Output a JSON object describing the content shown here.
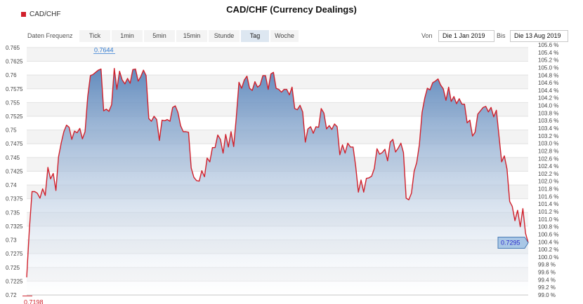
{
  "chart_data": {
    "type": "area",
    "title": "CAD/CHF (Currency Dealings)",
    "legend": [
      "CAD/CHF"
    ],
    "ylim": [
      0.72,
      0.7655
    ],
    "right_ylim": [
      99.0,
      105.6
    ],
    "left_ticks": [
      "0.765",
      "0.7625",
      "0.76",
      "0.7575",
      "0.755",
      "0.7525",
      "0.75",
      "0.7475",
      "0.745",
      "0.7425",
      "0.74",
      "0.7375",
      "0.735",
      "0.7325",
      "0.73",
      "0.7275",
      "0.725",
      "0.7225",
      "0.72"
    ],
    "right_ticks": [
      "105.6 %",
      "105.4 %",
      "105.2 %",
      "105.0 %",
      "104.8 %",
      "104.6 %",
      "104.4 %",
      "104.2 %",
      "104.0 %",
      "103.8 %",
      "103.6 %",
      "103.4 %",
      "103.2 %",
      "103.0 %",
      "102.8 %",
      "102.6 %",
      "102.4 %",
      "102.2 %",
      "102.0 %",
      "101.8 %",
      "101.6 %",
      "101.4 %",
      "101.2 %",
      "101.0 %",
      "100.8 %",
      "100.6 %",
      "100.4 %",
      "100.2 %",
      "100.0 %",
      "99.8 %",
      "99.6 %",
      "99.4 %",
      "99.2 %",
      "99.0 %"
    ],
    "x_start": "2019-01-01",
    "x_end": "2019-08-13",
    "max_label": "0.7644",
    "min_label": "0.7198",
    "last_label": "0.7295",
    "series": [
      {
        "values": [
          0.7232,
          0.7319,
          0.7388,
          0.7388,
          0.7385,
          0.7376,
          0.7393,
          0.7381,
          0.7432,
          0.7411,
          0.7421,
          0.739,
          0.7451,
          0.7476,
          0.7497,
          0.7509,
          0.7505,
          0.7483,
          0.7498,
          0.7495,
          0.7503,
          0.7484,
          0.7497,
          0.7561,
          0.7599,
          0.7601,
          0.7605,
          0.7609,
          0.7611,
          0.7535,
          0.7538,
          0.7534,
          0.7546,
          0.7612,
          0.7574,
          0.7607,
          0.7591,
          0.7584,
          0.7594,
          0.7585,
          0.761,
          0.7611,
          0.7589,
          0.7597,
          0.7609,
          0.7599,
          0.7521,
          0.7516,
          0.7525,
          0.7519,
          0.7481,
          0.7518,
          0.7517,
          0.7519,
          0.7516,
          0.7541,
          0.7544,
          0.7532,
          0.7508,
          0.7497,
          0.7497,
          0.7496,
          0.7431,
          0.7414,
          0.7408,
          0.7407,
          0.7426,
          0.7415,
          0.7449,
          0.7442,
          0.7468,
          0.7468,
          0.7491,
          0.7483,
          0.7458,
          0.7492,
          0.7469,
          0.7497,
          0.747,
          0.7523,
          0.7587,
          0.7576,
          0.7591,
          0.7598,
          0.7576,
          0.7572,
          0.7588,
          0.7578,
          0.7582,
          0.7599,
          0.7599,
          0.7574,
          0.7602,
          0.7605,
          0.7576,
          0.7574,
          0.7569,
          0.7574,
          0.7574,
          0.7564,
          0.7578,
          0.7539,
          0.7537,
          0.7545,
          0.7533,
          0.7478,
          0.7502,
          0.7506,
          0.7494,
          0.7506,
          0.7505,
          0.7539,
          0.7531,
          0.7502,
          0.7508,
          0.7501,
          0.7511,
          0.7506,
          0.7455,
          0.7473,
          0.7458,
          0.7476,
          0.7469,
          0.7469,
          0.7434,
          0.7387,
          0.7409,
          0.7387,
          0.7412,
          0.7413,
          0.7416,
          0.743,
          0.7466,
          0.7456,
          0.7459,
          0.7465,
          0.7444,
          0.7478,
          0.7483,
          0.746,
          0.7467,
          0.7476,
          0.7459,
          0.7376,
          0.7373,
          0.7385,
          0.7425,
          0.7441,
          0.7474,
          0.7532,
          0.7558,
          0.7576,
          0.7573,
          0.7586,
          0.7589,
          0.7593,
          0.7582,
          0.7575,
          0.7554,
          0.7578,
          0.7552,
          0.7561,
          0.7548,
          0.7557,
          0.7547,
          0.7547,
          0.7513,
          0.7518,
          0.7489,
          0.7496,
          0.7529,
          0.7535,
          0.7541,
          0.7543,
          0.7533,
          0.7541,
          0.7524,
          0.7536,
          0.7489,
          0.7442,
          0.7453,
          0.7429,
          0.737,
          0.7361,
          0.7335,
          0.7354,
          0.7324,
          0.7357,
          0.7312,
          0.7295
        ]
      }
    ]
  },
  "legend_label": "CAD/CHF",
  "controls": {
    "frequency_label": "Daten Frequenz",
    "tabs": [
      "Tick",
      "1min",
      "5min",
      "15min",
      "Stunde",
      "Tag",
      "Woche"
    ],
    "active_tab": "Tag",
    "from_label": "Von",
    "from_value": "Die 1 Jan 2019",
    "to_label": "Bis",
    "to_value": "Die 13 Aug 2019"
  },
  "colors": {
    "line": "#d1202b",
    "fill_top": "#5a85ba",
    "fill_bottom": "#ffffff",
    "grid": "#e2e2e2",
    "band": "#f3f3f3",
    "max_label": "#2e7ad1",
    "min_label": "#d1202b",
    "last_box_fill": "#a9c7e6",
    "last_box_border": "#4a7cb5",
    "last_box_text": "#2b2bcc"
  }
}
